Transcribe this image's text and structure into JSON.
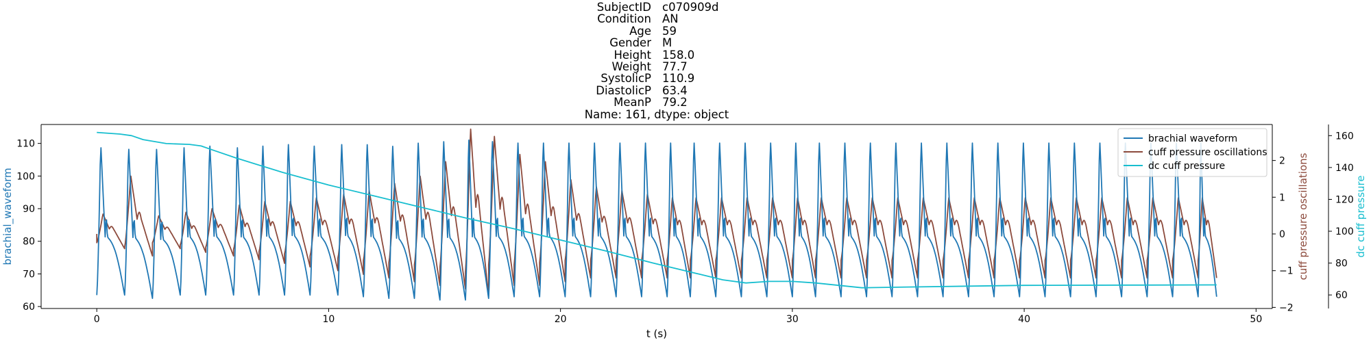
{
  "title_lines": [
    {
      "key": "SubjectID",
      "value": "c070909d"
    },
    {
      "key": "Condition",
      "value": "AN"
    },
    {
      "key": "Age",
      "value": "59"
    },
    {
      "key": "Gender",
      "value": "M"
    },
    {
      "key": "Height",
      "value": "158.0"
    },
    {
      "key": "Weight",
      "value": "77.7"
    },
    {
      "key": "SystolicP",
      "value": "110.9"
    },
    {
      "key": "DiastolicP",
      "value": "63.4"
    },
    {
      "key": "MeanP",
      "value": "79.2"
    }
  ],
  "title_footer": "Name: 161, dtype: object",
  "colors": {
    "brachial": "#1f77b4",
    "oscillation": "#8c4a3c",
    "dc": "#17becf",
    "axis": "#000000"
  },
  "chart_data": {
    "type": "line",
    "xlabel": "t (s)",
    "xlim": [
      -2.4,
      50.7
    ],
    "x_ticks": [
      0,
      10,
      20,
      30,
      40,
      50
    ],
    "x_tick_labels": [
      "0",
      "10",
      "20",
      "30",
      "40",
      "50"
    ],
    "grid": false,
    "legend_position": "top-right",
    "axes": [
      {
        "id": "left",
        "label": "brachial_waveform",
        "ylim": [
          59.4,
          115.8
        ],
        "ticks": [
          60,
          70,
          80,
          90,
          100,
          110
        ],
        "tick_labels": [
          "60",
          "70",
          "80",
          "90",
          "100",
          "110"
        ]
      },
      {
        "id": "right1",
        "label": "cuff pressure oscillations",
        "ylim": [
          -2.03,
          2.98
        ],
        "ticks": [
          -2,
          -1,
          0,
          1,
          2
        ],
        "tick_labels": [
          "−2",
          "−1",
          "0",
          "1",
          "2"
        ]
      },
      {
        "id": "right2",
        "label": "dc cuff pressure",
        "ylim": [
          51.5,
          167.0
        ],
        "ticks": [
          60,
          80,
          100,
          120,
          140,
          160
        ],
        "tick_labels": [
          "60",
          "80",
          "100",
          "120",
          "140",
          "160"
        ]
      }
    ],
    "series": [
      {
        "name": "brachial waveform",
        "axis": "left",
        "kind": "pulse-train",
        "beat_times_s": [
          0.0,
          1.2,
          2.4,
          3.6,
          4.7,
          5.9,
          7.0,
          8.1,
          9.2,
          10.4,
          11.5,
          12.6,
          13.7,
          14.8,
          15.9,
          16.9,
          18.0,
          19.1,
          20.2,
          21.3,
          22.4,
          23.5,
          24.6,
          25.6,
          26.7,
          27.8,
          28.9,
          30.0,
          31.0,
          32.1,
          33.2,
          34.3,
          35.4,
          36.5,
          37.6,
          38.7,
          39.8,
          40.9,
          42.0,
          43.1,
          44.2,
          45.3,
          46.4,
          47.5
        ],
        "peak_values": [
          110.5,
          110.0,
          110.0,
          110.5,
          111.0,
          110.5,
          111.0,
          111.5,
          111.0,
          111.5,
          111.5,
          111.0,
          112.0,
          112.5,
          113.0,
          112.5,
          112.0,
          112.0,
          112.0,
          112.0,
          112.0,
          112.0,
          112.0,
          112.0,
          112.0,
          112.0,
          112.0,
          112.0,
          112.0,
          112.0,
          112.0,
          112.0,
          112.0,
          112.0,
          112.0,
          112.0,
          112.0,
          112.0,
          112.0,
          112.0,
          112.0,
          112.0,
          112.0,
          112.0
        ],
        "trough_values": [
          63.5,
          63.5,
          62.5,
          63.5,
          63.5,
          63.5,
          63.5,
          63.5,
          63.5,
          63.5,
          63.0,
          62.5,
          62.5,
          62.0,
          62.0,
          62.5,
          63.0,
          63.0,
          63.0,
          63.0,
          63.0,
          63.0,
          63.0,
          63.0,
          63.0,
          63.0,
          63.0,
          63.0,
          63.0,
          63.0,
          63.0,
          63.0,
          63.0,
          63.0,
          63.0,
          63.0,
          63.0,
          63.0,
          63.0,
          63.0,
          63.0,
          63.0,
          63.0,
          63.0
        ]
      },
      {
        "name": "cuff pressure oscillations",
        "axis": "right1",
        "kind": "oscillation-train",
        "beat_times_s": [
          0.0,
          1.2,
          2.4,
          3.6,
          4.7,
          5.9,
          7.0,
          8.1,
          9.2,
          10.4,
          11.5,
          12.6,
          13.7,
          14.8,
          15.9,
          16.9,
          18.0,
          19.1,
          20.2,
          21.3,
          22.4,
          23.5,
          24.6,
          25.6,
          26.7,
          27.8,
          28.9,
          30.0,
          31.0,
          32.1,
          33.2,
          34.3,
          35.4,
          36.5,
          37.6,
          38.7,
          39.8,
          40.9,
          42.0,
          43.1,
          44.2,
          45.3,
          46.4,
          47.5
        ],
        "peak_values": [
          0.55,
          1.6,
          0.5,
          0.6,
          0.7,
          0.8,
          0.9,
          0.9,
          1.0,
          1.1,
          1.2,
          1.4,
          1.6,
          2.0,
          2.9,
          2.7,
          2.2,
          2.0,
          1.5,
          1.3,
          1.2,
          1.1,
          1.0,
          1.0,
          1.0,
          1.0,
          1.0,
          1.0,
          1.0,
          1.0,
          1.0,
          1.0,
          1.0,
          1.0,
          1.0,
          1.0,
          1.0,
          1.0,
          1.0,
          1.0,
          1.0,
          1.0,
          1.0,
          1.0
        ],
        "trough_values": [
          -0.4,
          -0.6,
          -0.4,
          -0.5,
          -0.6,
          -0.7,
          -0.8,
          -0.9,
          -1.0,
          -1.1,
          -1.2,
          -1.3,
          -1.4,
          -1.5,
          -1.7,
          -1.4,
          -1.4,
          -1.3,
          -1.2,
          -1.2,
          -1.2,
          -1.2,
          -1.2,
          -1.2,
          -1.2,
          -1.2,
          -1.2,
          -1.2,
          -1.2,
          -1.2,
          -1.2,
          -1.2,
          -1.2,
          -1.2,
          -1.2,
          -1.2,
          -1.2,
          -1.2,
          -1.2,
          -1.2,
          -1.2,
          -1.2,
          -1.2,
          -1.2
        ]
      },
      {
        "name": "dc cuff pressure",
        "axis": "right2",
        "kind": "line",
        "x": [
          0.0,
          1.0,
          1.5,
          2.0,
          3.0,
          4.0,
          4.5,
          5.0,
          6.0,
          8.0,
          10.0,
          12.0,
          14.0,
          16.0,
          18.0,
          20.0,
          22.0,
          24.0,
          25.0,
          26.0,
          27.0,
          28.0,
          29.0,
          30.0,
          31.0,
          32.0,
          33.0,
          35.0,
          40.0,
          45.0,
          48.3
        ],
        "y": [
          162.0,
          161.0,
          160.0,
          157.5,
          155.0,
          154.5,
          153.5,
          151.0,
          146.0,
          137.0,
          129.0,
          122.0,
          115.0,
          108.0,
          101.5,
          94.5,
          87.5,
          80.0,
          76.5,
          73.0,
          69.5,
          67.5,
          68.5,
          68.5,
          67.5,
          66.0,
          64.5,
          65.0,
          66.0,
          66.2,
          66.3
        ]
      }
    ]
  }
}
